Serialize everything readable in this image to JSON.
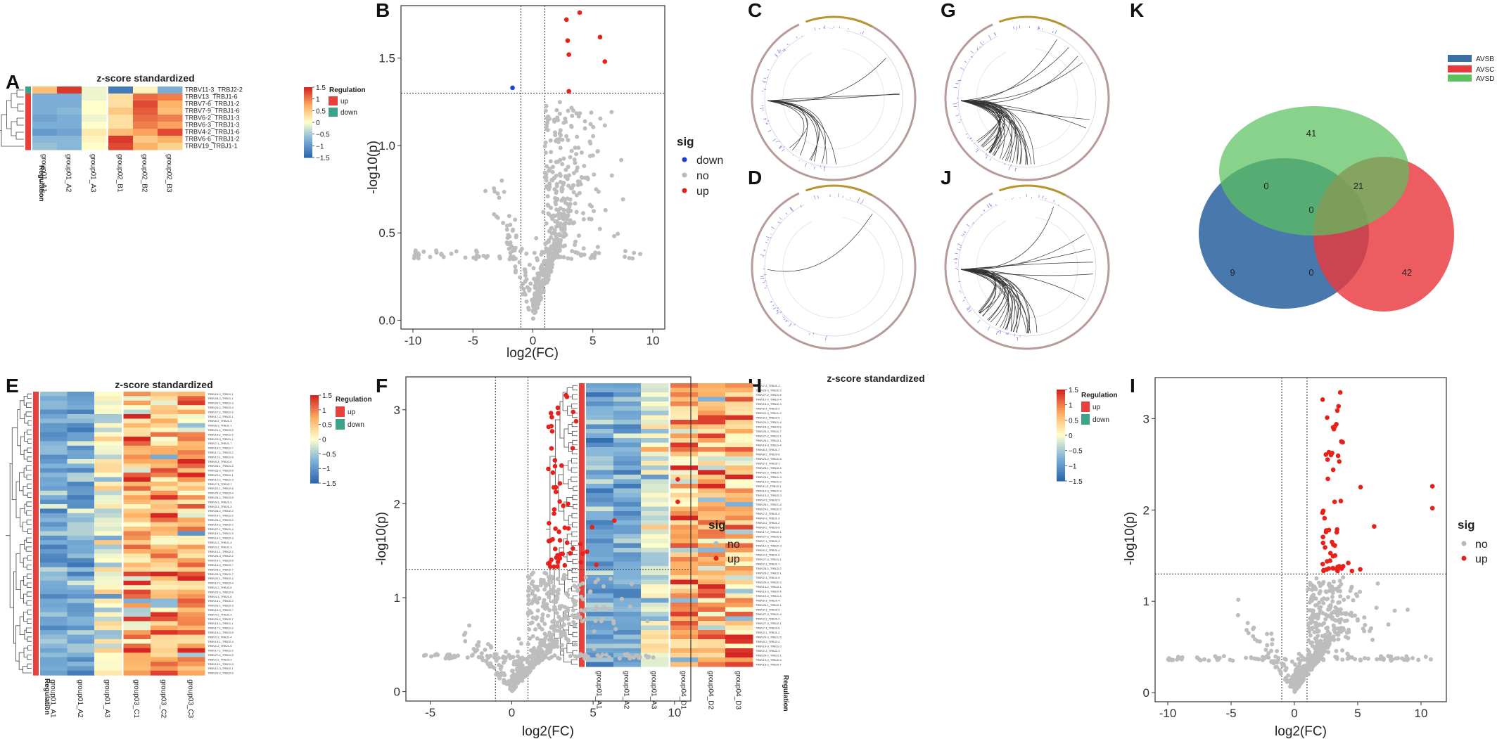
{
  "panels": {
    "A": "A",
    "B": "B",
    "C": "C",
    "D": "D",
    "E": "E",
    "F": "F",
    "G": "G",
    "H": "H",
    "I": "I",
    "J": "J",
    "K": "K"
  },
  "heatmap_common": {
    "title": "z-score standardized",
    "regulation_label": "Regulation",
    "legend_title": "Regulation",
    "legend_up": "up",
    "legend_down": "down",
    "scale_ticks": [
      "1.5",
      "1",
      "0.5",
      "0",
      "−0.5",
      "−1",
      "−1.5"
    ]
  },
  "volcano_common": {
    "xlabel": "log2(FC)",
    "ylabel": "-log10(p)",
    "legend_title": "sig",
    "legend_down": "down",
    "legend_no": "no",
    "legend_up": "up"
  },
  "chart_data": [
    {
      "panel": "A",
      "type": "heatmap",
      "title": "z-score standardized",
      "columns": [
        "group01_A1",
        "group01_A2",
        "group01_A3",
        "group02_B1",
        "group02_B2",
        "group02_B3"
      ],
      "rows": [
        "TRBV11-3_TRBJ2-2",
        "TRBV13_TRBJ1-6",
        "TRBV7-6_TRBJ1-2",
        "TRBV7-9_TRBJ1-6",
        "TRBV6-2_TRBJ1-3",
        "TRBV6-3_TRBJ1-3",
        "TRBV4-2_TRBJ1-6",
        "TRBV6-6_TRBJ1-2",
        "TRBV19_TRBJ1-1"
      ],
      "regulation": [
        "down",
        "up",
        "up",
        "up",
        "up",
        "up",
        "up",
        "up",
        "up"
      ],
      "values": [
        [
          0.6,
          1.4,
          -0.1,
          -1.3,
          0.1,
          -0.8
        ],
        [
          -0.8,
          -0.8,
          -0.1,
          0.3,
          1.1,
          1.0
        ],
        [
          -0.8,
          -0.8,
          0.0,
          0.3,
          1.3,
          0.7
        ],
        [
          -0.8,
          -0.7,
          0.0,
          0.5,
          1.2,
          0.6
        ],
        [
          -0.9,
          -0.8,
          -0.1,
          0.3,
          1.1,
          1.0
        ],
        [
          -0.8,
          -0.8,
          0.0,
          0.3,
          1.0,
          0.8
        ],
        [
          -1.0,
          -0.9,
          0.2,
          0.6,
          0.8,
          1.3
        ],
        [
          -0.7,
          -0.7,
          0.1,
          1.4,
          0.5,
          0.7
        ],
        [
          -0.6,
          -0.7,
          0.0,
          1.3,
          0.7,
          0.4
        ]
      ],
      "color_range": [
        -1.5,
        1.5
      ]
    },
    {
      "panel": "B",
      "type": "scatter",
      "xlabel": "log2(FC)",
      "ylabel": "-log10(p)",
      "xlim": [
        -11,
        11
      ],
      "ylim": [
        -0.05,
        1.8
      ],
      "xticks": [
        -10,
        -5,
        0,
        5,
        10
      ],
      "yticks": [
        0.0,
        0.5,
        1.0,
        1.5
      ],
      "thresholds": {
        "fc": [
          -1,
          1
        ],
        "p": 1.3
      },
      "legend": [
        "down",
        "no",
        "up"
      ],
      "points_down": [
        [
          -1.7,
          1.33
        ]
      ],
      "points_up": [
        [
          2.8,
          1.72
        ],
        [
          3.9,
          1.76
        ],
        [
          2.9,
          1.6
        ],
        [
          5.6,
          1.62
        ],
        [
          3.0,
          1.52
        ],
        [
          6.0,
          1.48
        ],
        [
          3.0,
          1.31
        ]
      ],
      "gray_counts": 620
    },
    {
      "panel": "C",
      "type": "circos",
      "arc_count": 12
    },
    {
      "panel": "D",
      "type": "circos",
      "arc_count": 1
    },
    {
      "panel": "G",
      "type": "circos",
      "arc_count": 36
    },
    {
      "panel": "J",
      "type": "circos",
      "arc_count": 34
    },
    {
      "panel": "K",
      "type": "venn",
      "sets": [
        "AVSB",
        "AVSC",
        "AVSD"
      ],
      "colors": {
        "AVSB": "#3a6ea5",
        "AVSC": "#e8383d",
        "AVSD": "#5cc15e"
      },
      "regions": {
        "D_only": "41",
        "B_only": "9",
        "C_only": "42",
        "B_D": "0",
        "C_D": "21",
        "B_C": "0",
        "B_C_D": "0"
      }
    },
    {
      "panel": "E",
      "type": "heatmap",
      "title": "z-score standardized",
      "columns": [
        "group01_A1",
        "group01_A2",
        "group01_A3",
        "group03_C1",
        "group03_C2",
        "group03_C3"
      ],
      "row_count": 63,
      "color_range": [
        -1.5,
        1.5
      ]
    },
    {
      "panel": "F",
      "type": "scatter",
      "xlabel": "log2(FC)",
      "ylabel": "-log10(p)",
      "xlim": [
        -6.5,
        11
      ],
      "ylim": [
        -0.1,
        3.35
      ],
      "xticks": [
        -5,
        0,
        5,
        10
      ],
      "yticks": [
        0,
        1,
        2,
        3
      ],
      "thresholds": {
        "fc": [
          -1,
          1
        ],
        "p": 1.3
      },
      "legend": [
        "no",
        "up"
      ],
      "red_count": 63,
      "gray_counts": 600
    },
    {
      "panel": "H",
      "type": "heatmap",
      "title": "z-score standardized",
      "columns": [
        "group01_A1",
        "group01_A2",
        "group01_A3",
        "group04_D1",
        "group04_D2",
        "group04_D3"
      ],
      "row_count": 62,
      "color_range": [
        -1.5,
        1.5
      ]
    },
    {
      "panel": "I",
      "type": "scatter",
      "xlabel": "log2(FC)",
      "ylabel": "-log10(p)",
      "xlim": [
        -11,
        12
      ],
      "ylim": [
        -0.1,
        3.45
      ],
      "xticks": [
        -10,
        -5,
        0,
        5,
        10
      ],
      "yticks": [
        0,
        1,
        2,
        3
      ],
      "thresholds": {
        "fc": [
          -1,
          1
        ],
        "p": 1.3
      },
      "legend": [
        "no",
        "up"
      ],
      "red_count": 62,
      "gray_counts": 600
    }
  ]
}
